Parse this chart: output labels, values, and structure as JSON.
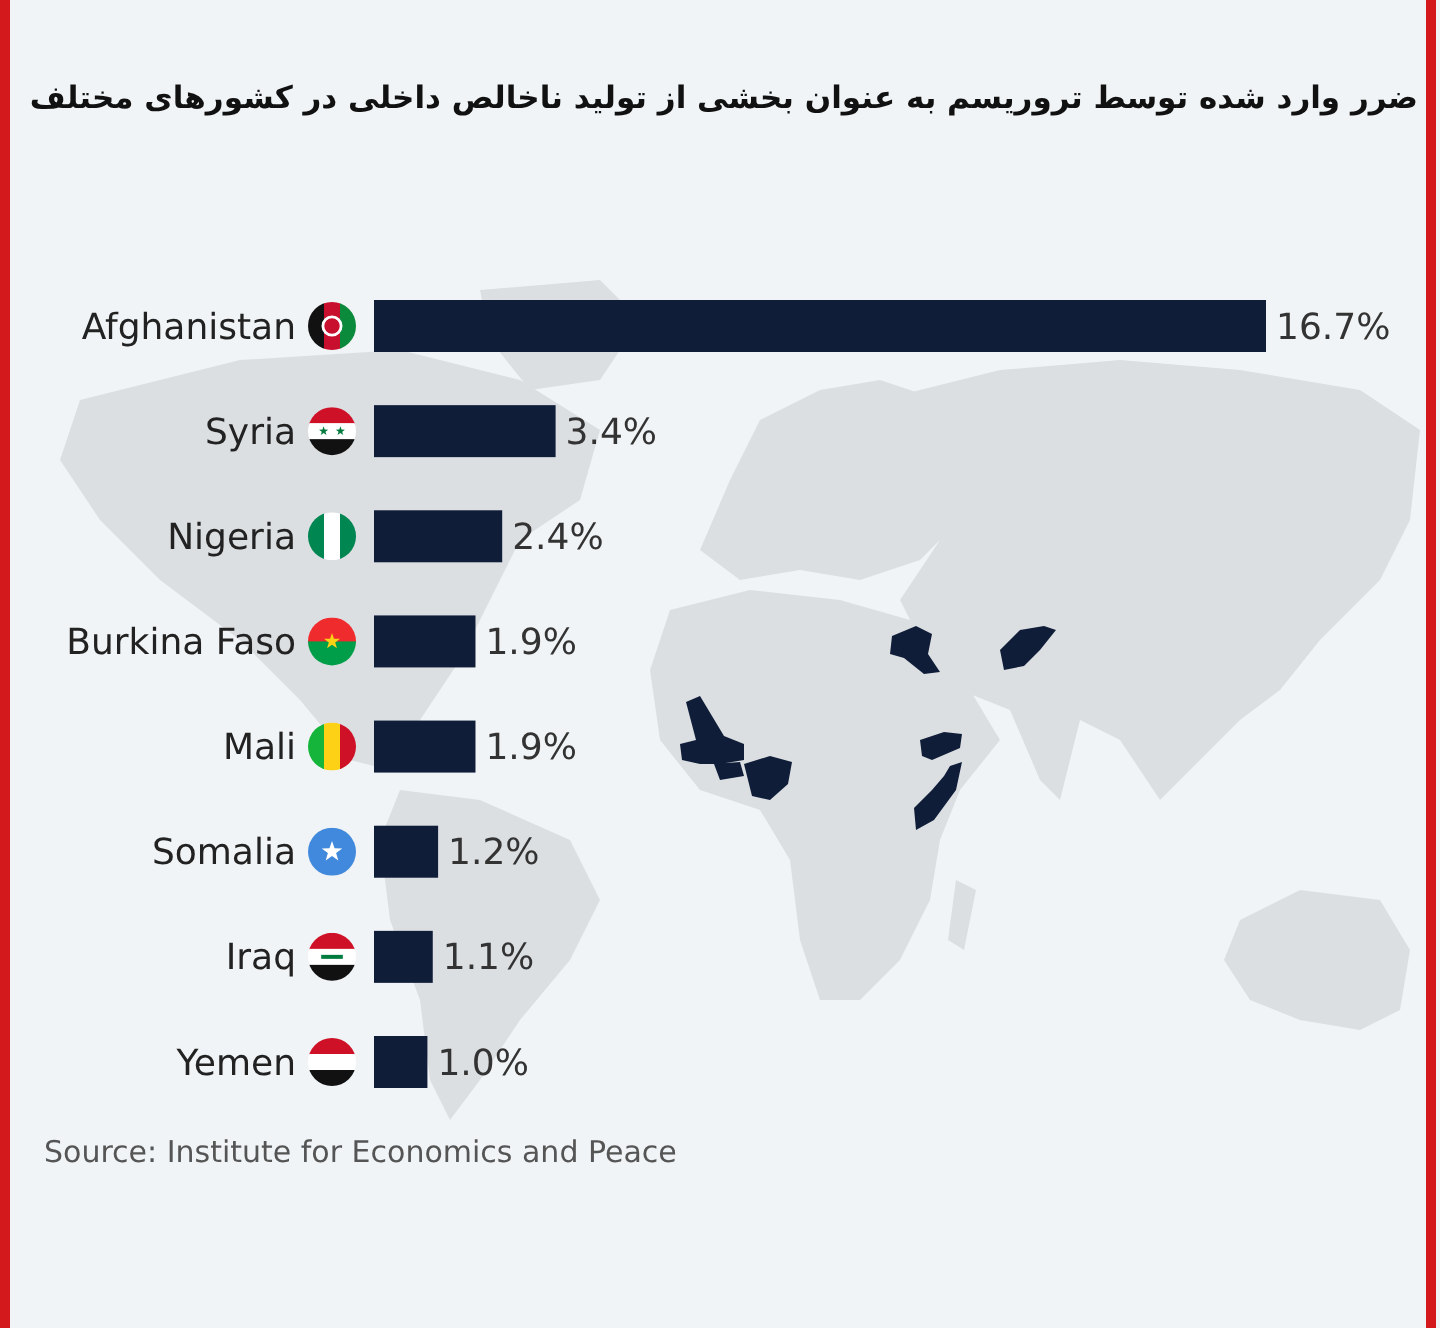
{
  "chart_data": {
    "type": "bar",
    "orientation": "horizontal",
    "title": "ضرر وارد شده توسط تروریسم به عنوان بخشی از تولید ناخالص داخلی در کشورهای مختلف",
    "categories": [
      "Afghanistan",
      "Syria",
      "Nigeria",
      "Burkina Faso",
      "Mali",
      "Somalia",
      "Iraq",
      "Yemen"
    ],
    "values": [
      16.7,
      3.4,
      2.4,
      1.9,
      1.9,
      1.2,
      1.1,
      1.0
    ],
    "value_labels": [
      "16.7%",
      "3.4%",
      "2.4%",
      "1.9%",
      "1.9%",
      "1.2%",
      "1.1%",
      "1.0%"
    ],
    "color": "#0f1d38",
    "annotations": [
      "Source: Institute for Economics and Peace"
    ]
  }
}
